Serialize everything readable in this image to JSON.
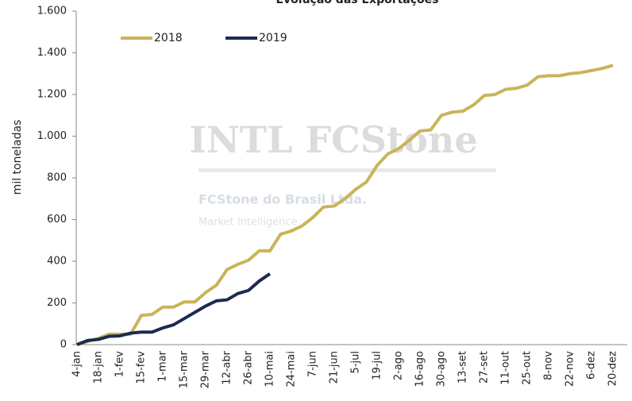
{
  "chart_data": {
    "type": "line",
    "title": "Evolução das Exportações",
    "y_label": "mil toneladas",
    "watermark": {
      "brand": "INTL FCStone",
      "company": "FCStone do Brasil Ltda.",
      "unit": "Market Intelligence"
    },
    "categories": [
      "4-jan",
      null,
      "18-jan",
      null,
      "1-fev",
      null,
      "15-fev",
      null,
      "1-mar",
      null,
      "15-mar",
      null,
      "29-mar",
      null,
      "12-abr",
      null,
      "26-abr",
      null,
      "10-mai",
      null,
      "24-mai",
      null,
      "7-jun",
      null,
      "21-jun",
      null,
      "5-jul",
      null,
      "19-jul",
      null,
      "2-ago",
      null,
      "16-ago",
      null,
      "30-ago",
      null,
      "13-set",
      null,
      "27-set",
      null,
      "11-out",
      null,
      "25-out",
      null,
      "8-nov",
      null,
      "22-nov",
      null,
      "6-dez",
      null,
      "20-dez",
      null
    ],
    "series": [
      {
        "name": "2018",
        "color": "#c9b458",
        "values": [
          0,
          15,
          30,
          50,
          50,
          50,
          140,
          145,
          180,
          180,
          205,
          205,
          250,
          285,
          360,
          385,
          405,
          450,
          450,
          530,
          545,
          570,
          610,
          660,
          665,
          700,
          745,
          780,
          860,
          915,
          940,
          980,
          1025,
          1030,
          1100,
          1115,
          1120,
          1150,
          1195,
          1200,
          1225,
          1230,
          1245,
          1285,
          1290,
          1290,
          1300,
          1305,
          1315,
          1325,
          1340,
          null
        ]
      },
      {
        "name": "2019",
        "color": "#1c2a52",
        "values": [
          0,
          20,
          25,
          40,
          42,
          55,
          60,
          60,
          80,
          95,
          125,
          155,
          185,
          210,
          215,
          245,
          260,
          305,
          340,
          null,
          null,
          null,
          null,
          null,
          null,
          null,
          null,
          null,
          null,
          null,
          null,
          null,
          null,
          null,
          null,
          null,
          null,
          null,
          null,
          null,
          null,
          null,
          null,
          null,
          null,
          null,
          null,
          null,
          null,
          null,
          null,
          null
        ]
      }
    ],
    "ylim": [
      0,
      1600
    ],
    "yticks": [
      0,
      200,
      400,
      600,
      800,
      {
        "value": 1000,
        "label": "1.000"
      },
      {
        "value": 1200,
        "label": "1.200"
      },
      {
        "value": 1400,
        "label": "1.400"
      },
      {
        "value": 1600,
        "label": "1.600"
      }
    ],
    "legend": "top-left"
  }
}
